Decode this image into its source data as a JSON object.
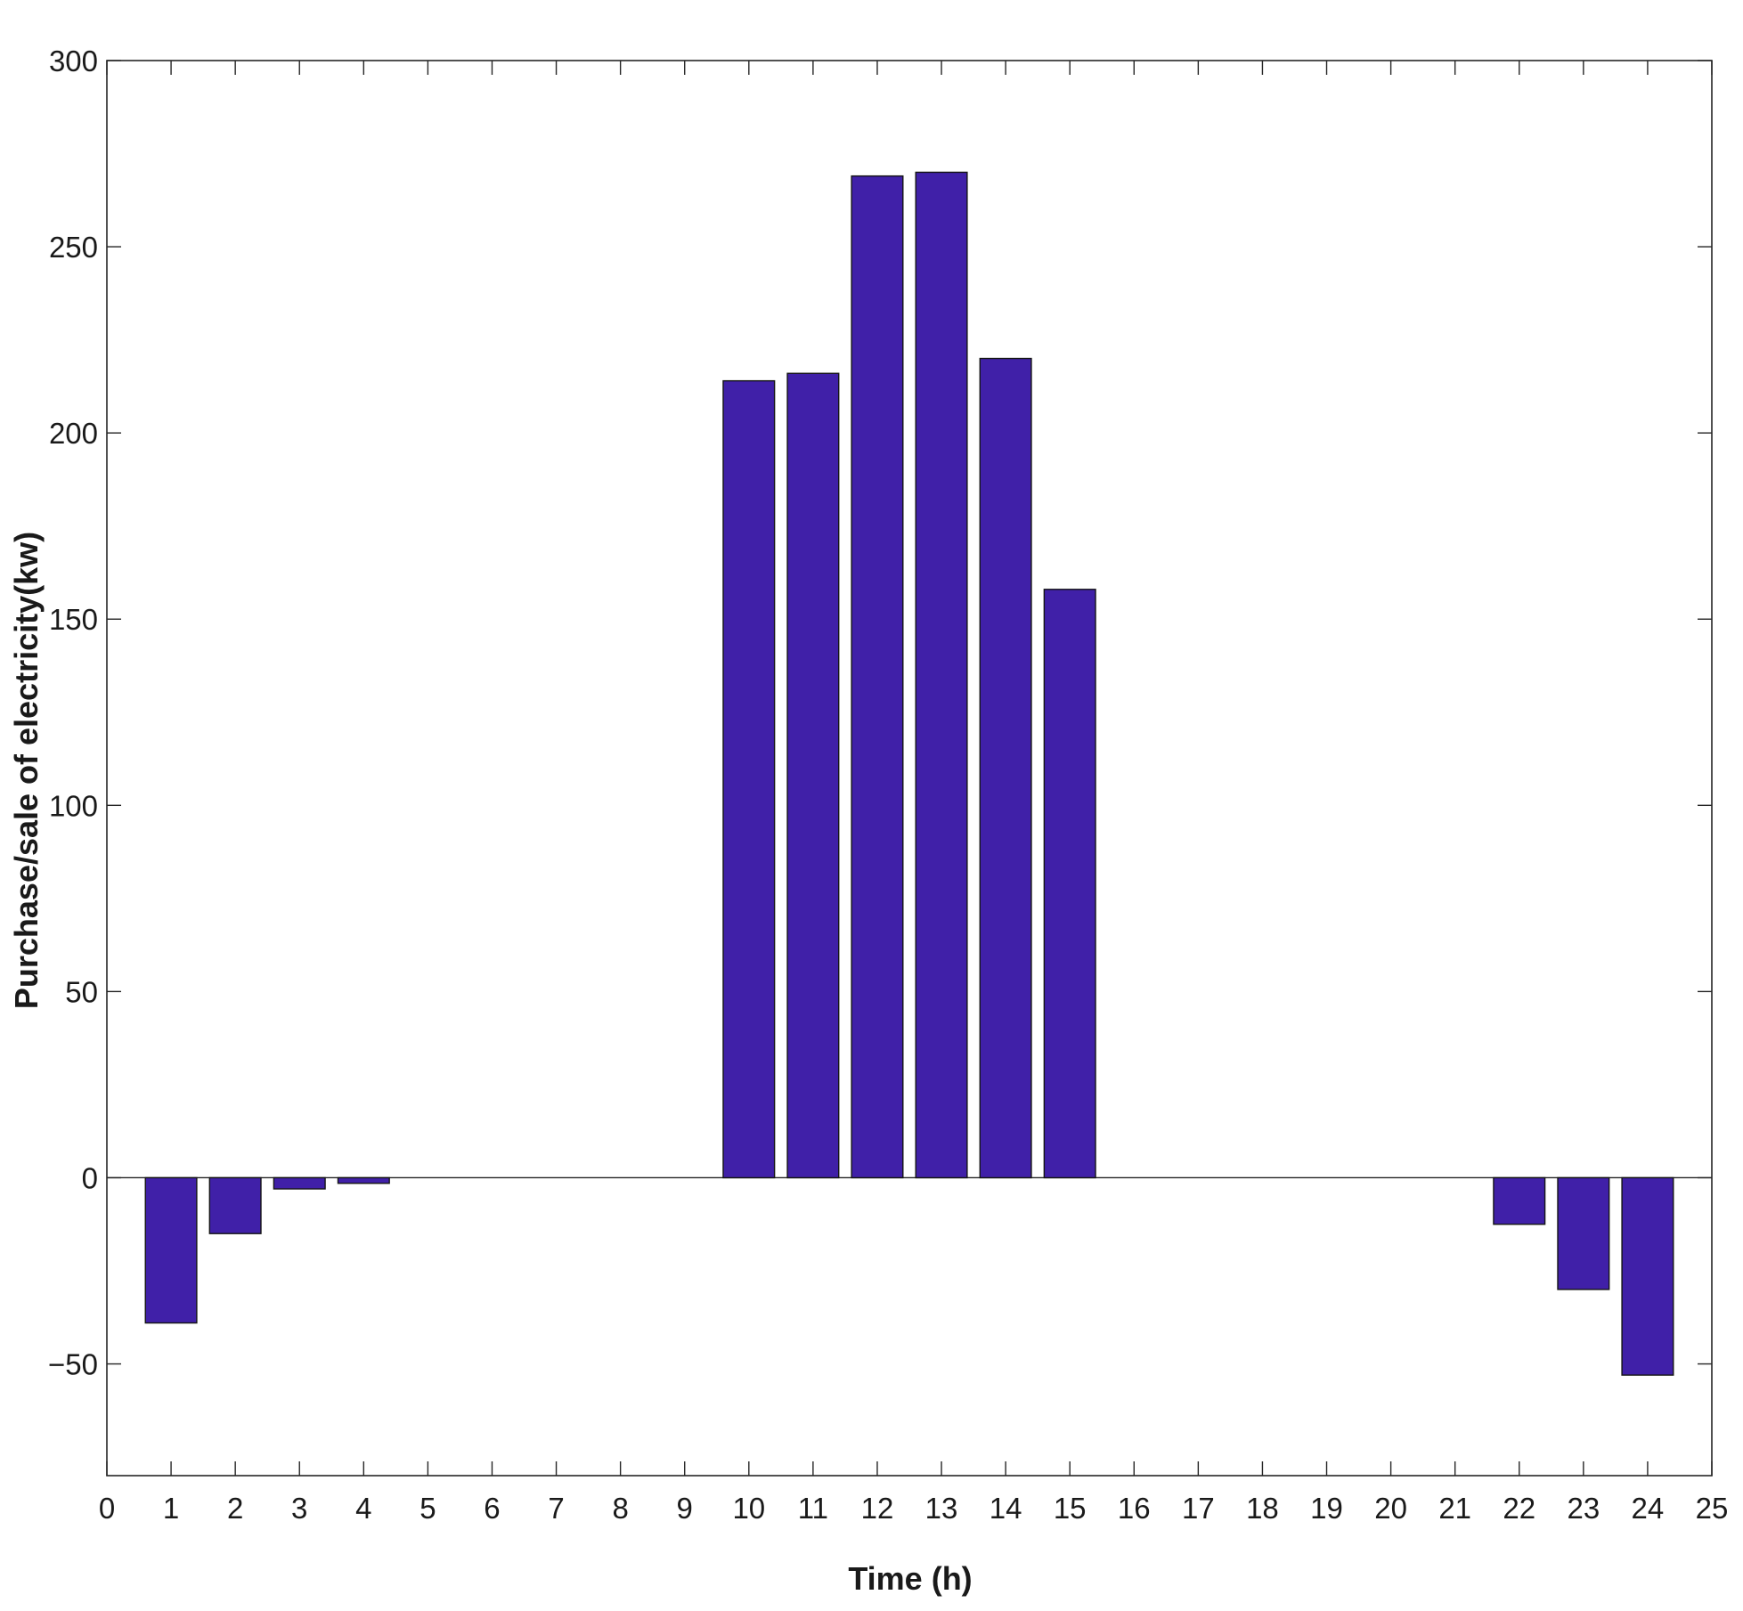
{
  "chart_data": {
    "type": "bar",
    "title": "",
    "xlabel": "Time (h)",
    "ylabel": "Purchase/sale of electricity(kw)",
    "categories": [
      "1",
      "2",
      "3",
      "4",
      "5",
      "6",
      "7",
      "8",
      "9",
      "10",
      "11",
      "12",
      "13",
      "14",
      "15",
      "16",
      "17",
      "18",
      "19",
      "20",
      "21",
      "22",
      "23",
      "24"
    ],
    "x": [
      1,
      2,
      3,
      4,
      5,
      6,
      7,
      8,
      9,
      10,
      11,
      12,
      13,
      14,
      15,
      16,
      17,
      18,
      19,
      20,
      21,
      22,
      23,
      24
    ],
    "values": [
      -39,
      -15,
      -3,
      -1.5,
      0,
      0,
      0,
      0,
      0,
      214,
      216,
      269,
      270,
      220,
      158,
      0,
      0,
      0,
      0,
      0,
      0,
      -12.5,
      -30,
      -53
    ],
    "xlim": [
      0,
      25
    ],
    "ylim": [
      -80,
      300
    ],
    "xticks": [
      0,
      1,
      2,
      3,
      4,
      5,
      6,
      7,
      8,
      9,
      10,
      11,
      12,
      13,
      14,
      15,
      16,
      17,
      18,
      19,
      20,
      21,
      22,
      23,
      24,
      25
    ],
    "yticks": [
      -50,
      0,
      50,
      100,
      150,
      200,
      250,
      300
    ],
    "ytick_labels": [
      "−50",
      "0",
      "50",
      "100",
      "150",
      "200",
      "250",
      "300"
    ],
    "grid": false,
    "legend": "none",
    "bar_color": "#4020a8",
    "bar_edge_color": "#141414"
  }
}
